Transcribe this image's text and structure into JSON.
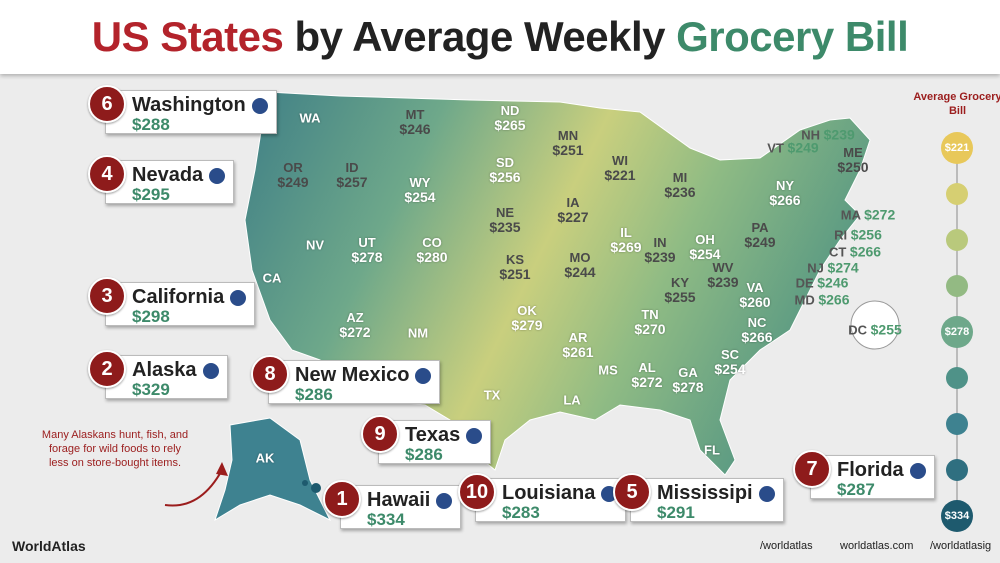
{
  "title": {
    "part1": "US States",
    "part2": "by Average Weekly",
    "part3": "Grocery Bill"
  },
  "states": [
    {
      "abbr": "WA"
    },
    {
      "abbr": "OR",
      "value": "$249"
    },
    {
      "abbr": "ID",
      "value": "$257"
    },
    {
      "abbr": "MT",
      "value": "$246"
    },
    {
      "abbr": "WY",
      "value": "$254"
    },
    {
      "abbr": "ND",
      "value": "$265"
    },
    {
      "abbr": "SD",
      "value": "$256"
    },
    {
      "abbr": "NE",
      "value": "$235"
    },
    {
      "abbr": "KS",
      "value": "$251"
    },
    {
      "abbr": "OK",
      "value": "$279"
    },
    {
      "abbr": "TX"
    },
    {
      "abbr": "NM"
    },
    {
      "abbr": "AZ",
      "value": "$272"
    },
    {
      "abbr": "UT",
      "value": "$278"
    },
    {
      "abbr": "CO",
      "value": "$280"
    },
    {
      "abbr": "NV"
    },
    {
      "abbr": "CA"
    },
    {
      "abbr": "MN",
      "value": "$251"
    },
    {
      "abbr": "IA",
      "value": "$227"
    },
    {
      "abbr": "MO",
      "value": "$244"
    },
    {
      "abbr": "AR",
      "value": "$261"
    },
    {
      "abbr": "LA"
    },
    {
      "abbr": "MS"
    },
    {
      "abbr": "WI",
      "value": "$221"
    },
    {
      "abbr": "IL",
      "value": "$269"
    },
    {
      "abbr": "MI",
      "value": "$236"
    },
    {
      "abbr": "IN",
      "value": "$239"
    },
    {
      "abbr": "OH",
      "value": "$254"
    },
    {
      "abbr": "KY",
      "value": "$255"
    },
    {
      "abbr": "TN",
      "value": "$270"
    },
    {
      "abbr": "AL",
      "value": "$272"
    },
    {
      "abbr": "GA",
      "value": "$278"
    },
    {
      "abbr": "FL"
    },
    {
      "abbr": "SC",
      "value": "$254"
    },
    {
      "abbr": "NC",
      "value": "$266"
    },
    {
      "abbr": "VA",
      "value": "$260"
    },
    {
      "abbr": "WV",
      "value": "$239"
    },
    {
      "abbr": "PA",
      "value": "$249"
    },
    {
      "abbr": "NY",
      "value": "$266"
    },
    {
      "abbr": "VT",
      "value": "$249"
    },
    {
      "abbr": "NH",
      "value": "$239"
    },
    {
      "abbr": "ME",
      "value": "$250"
    },
    {
      "abbr": "MA",
      "value": "$272"
    },
    {
      "abbr": "RI",
      "value": "$256"
    },
    {
      "abbr": "CT",
      "value": "$266"
    },
    {
      "abbr": "NJ",
      "value": "$274"
    },
    {
      "abbr": "DE",
      "value": "$246"
    },
    {
      "abbr": "MD",
      "value": "$266"
    },
    {
      "abbr": "DC",
      "value": "$255"
    },
    {
      "abbr": "AK"
    }
  ],
  "callouts": [
    {
      "rank": "6",
      "name": "Washington",
      "value": "$288"
    },
    {
      "rank": "4",
      "name": "Nevada",
      "value": "$295"
    },
    {
      "rank": "3",
      "name": "California",
      "value": "$298"
    },
    {
      "rank": "2",
      "name": "Alaska",
      "value": "$329"
    },
    {
      "rank": "8",
      "name": "New Mexico",
      "value": "$286"
    },
    {
      "rank": "9",
      "name": "Texas",
      "value": "$286"
    },
    {
      "rank": "1",
      "name": "Hawaii",
      "value": "$334"
    },
    {
      "rank": "10",
      "name": "Louisiana",
      "value": "$283"
    },
    {
      "rank": "5",
      "name": "Mississipi",
      "value": "$291"
    },
    {
      "rank": "7",
      "name": "Florida",
      "value": "$287"
    }
  ],
  "legend": {
    "title": "Average Grocery Bill",
    "labels": [
      "$221",
      "$278",
      "$334"
    ]
  },
  "note": "Many Alaskans hunt, fish, and forage for wild foods to rely less on store-bought items.",
  "footer": {
    "brand": "WorldAtlas",
    "facebook": "/worldatlas",
    "site": "worldatlas.com",
    "instagram": "/worldatlasig"
  }
}
